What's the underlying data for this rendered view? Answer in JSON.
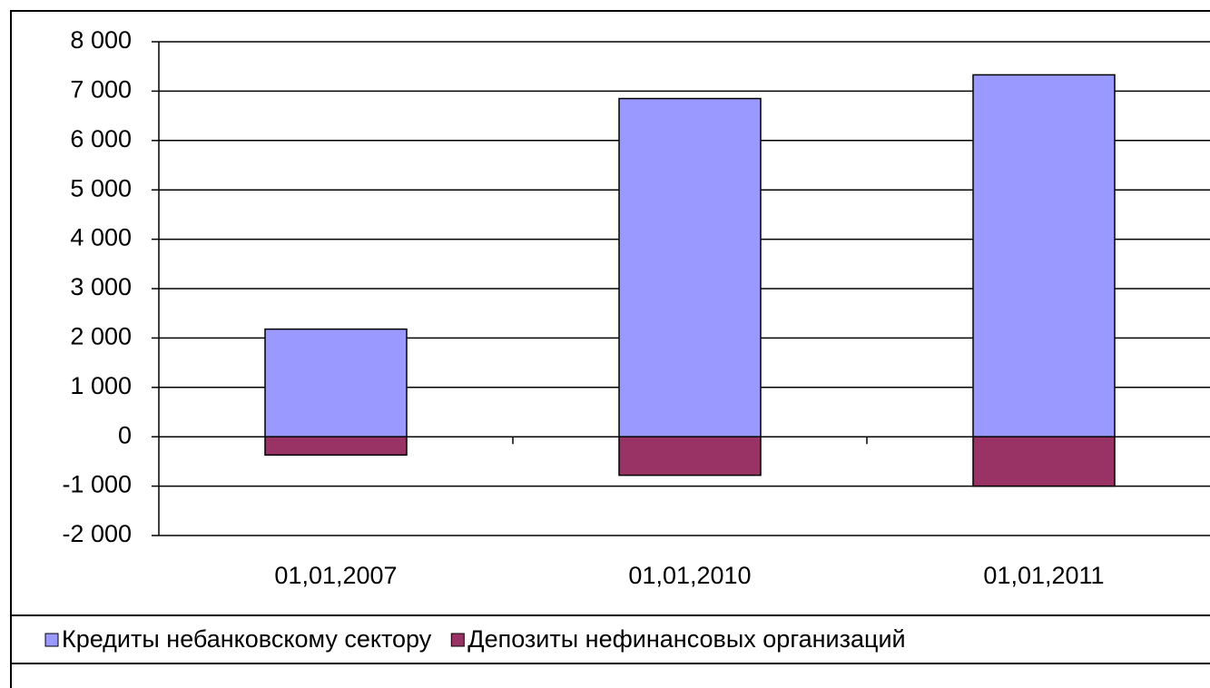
{
  "chart_data": {
    "type": "bar",
    "stacked": true,
    "categories": [
      "01,01,2007",
      "01,01,2010",
      "01,01,2011"
    ],
    "series": [
      {
        "name": "Кредиты небанковскому сектору",
        "color": "#9999ff",
        "values": [
          2180,
          6850,
          7330
        ]
      },
      {
        "name": "Депозиты нефинансовых организаций",
        "color": "#993366",
        "values": [
          -370,
          -780,
          -1000
        ]
      }
    ],
    "ylim": [
      -2000,
      8000
    ],
    "yticks": [
      {
        "value": -2000,
        "label": "-2 000"
      },
      {
        "value": -1000,
        "label": "-1 000"
      },
      0,
      {
        "value": 1000,
        "label": "1 000"
      },
      {
        "value": 2000,
        "label": "2 000"
      },
      {
        "value": 3000,
        "label": "3 000"
      },
      {
        "value": 4000,
        "label": "4 000"
      },
      {
        "value": 5000,
        "label": "5 000"
      },
      {
        "value": 6000,
        "label": "6 000"
      },
      {
        "value": 7000,
        "label": "7 000"
      },
      {
        "value": 8000,
        "label": "8 000"
      }
    ],
    "grid": true,
    "legend": "bottom"
  }
}
